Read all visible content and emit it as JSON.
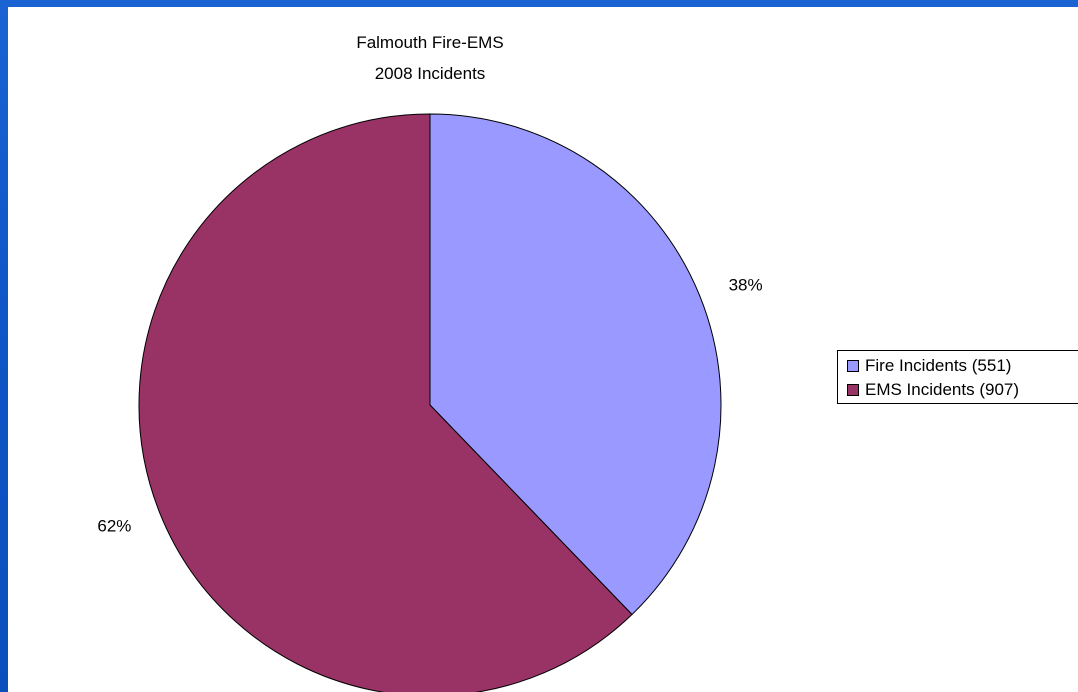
{
  "chart_data": {
    "type": "pie",
    "title": "Falmouth Fire-EMS",
    "subtitle": "2008 Incidents",
    "slices": [
      {
        "label": "Fire Incidents (551)",
        "value": 551,
        "percent_label": "38%",
        "color": "#9999ff"
      },
      {
        "label": "EMS Incidents (907)",
        "value": 907,
        "percent_label": "62%",
        "color": "#993366"
      }
    ],
    "legend_position": "right"
  },
  "colors": {
    "background": "#1059c8",
    "plot_area": "#ffffff",
    "slice_outline": "#000000"
  }
}
